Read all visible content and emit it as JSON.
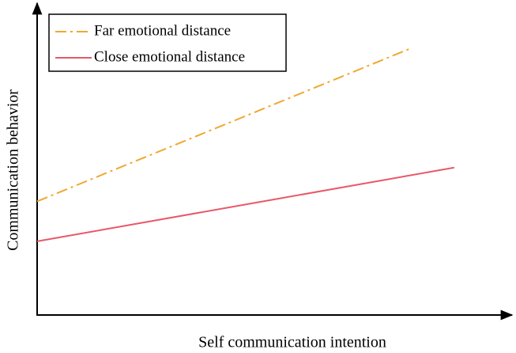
{
  "chart_data": {
    "type": "line",
    "xlabel": "Self communication intention",
    "ylabel": "Communication behavior",
    "xlim": [
      0,
      100
    ],
    "ylim": [
      0,
      100
    ],
    "legend": "upper left",
    "series": [
      {
        "name": "Far emotional distance",
        "color": "#f0a830",
        "dash": "dashdot",
        "x": [
          0,
          80
        ],
        "values": [
          37,
          87
        ]
      },
      {
        "name": "Close emotional distance",
        "color": "#e8586a",
        "dash": "solid",
        "x": [
          0,
          89
        ],
        "values": [
          24,
          48
        ]
      }
    ]
  }
}
